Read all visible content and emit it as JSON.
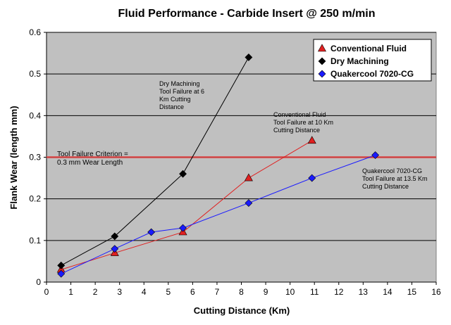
{
  "chart_data": {
    "type": "line",
    "title": "Fluid Performance - Carbide Insert @ 250 m/min",
    "xlabel": "Cutting Distance (Km)",
    "ylabel": "Flank Wear (length mm)",
    "xlim": [
      0,
      16
    ],
    "ylim": [
      0,
      0.6
    ],
    "xticks": [
      "0",
      "1",
      "2",
      "3",
      "4",
      "5",
      "6",
      "7",
      "8",
      "9",
      "10",
      "11",
      "12",
      "13",
      "14",
      "15",
      "16"
    ],
    "yticks": [
      "0",
      "0.1",
      "0.2",
      "0.3",
      "0.4",
      "0.5",
      "0.6"
    ],
    "grid": "horizontal",
    "legend_position": "top-right",
    "series": [
      {
        "name": "Conventional Fluid",
        "marker": "triangle",
        "color": "#e02020",
        "marker_fill": "#e02020",
        "x": [
          0.6,
          2.8,
          5.6,
          8.3,
          10.9
        ],
        "y": [
          0.03,
          0.07,
          0.12,
          0.25,
          0.34
        ]
      },
      {
        "name": "Dry Machining",
        "marker": "diamond",
        "color": "#000000",
        "marker_fill": "#000000",
        "x": [
          0.6,
          2.8,
          5.6,
          8.3
        ],
        "y": [
          0.04,
          0.11,
          0.26,
          0.54
        ]
      },
      {
        "name": "Quakercool 7020-CG",
        "marker": "diamond",
        "color": "#1a1aff",
        "marker_fill": "#1a1aff",
        "x": [
          0.6,
          2.8,
          4.3,
          5.6,
          8.3,
          10.9,
          13.5
        ],
        "y": [
          0.02,
          0.08,
          0.12,
          0.13,
          0.19,
          0.25,
          0.305
        ]
      }
    ],
    "criterion": {
      "y": 0.3,
      "color": "#e05050",
      "label": [
        "Tool Failure Criterion =",
        "0.3 mm Wear Length"
      ]
    },
    "annotations": [
      {
        "lines": [
          "Dry Machining",
          "Tool Failure at 6",
          "Km Cutting",
          "Distance"
        ]
      },
      {
        "lines": [
          "Conventional Fluid",
          "Tool Failure at 10 Km",
          "Cutting Distance"
        ]
      },
      {
        "lines": [
          "Quakercool 7020-CG",
          "Tool Failure at 13.5 Km",
          "Cutting Distance"
        ]
      }
    ],
    "colors": {
      "plot_background": "#c0c0c0",
      "gridline": "#000000"
    }
  }
}
